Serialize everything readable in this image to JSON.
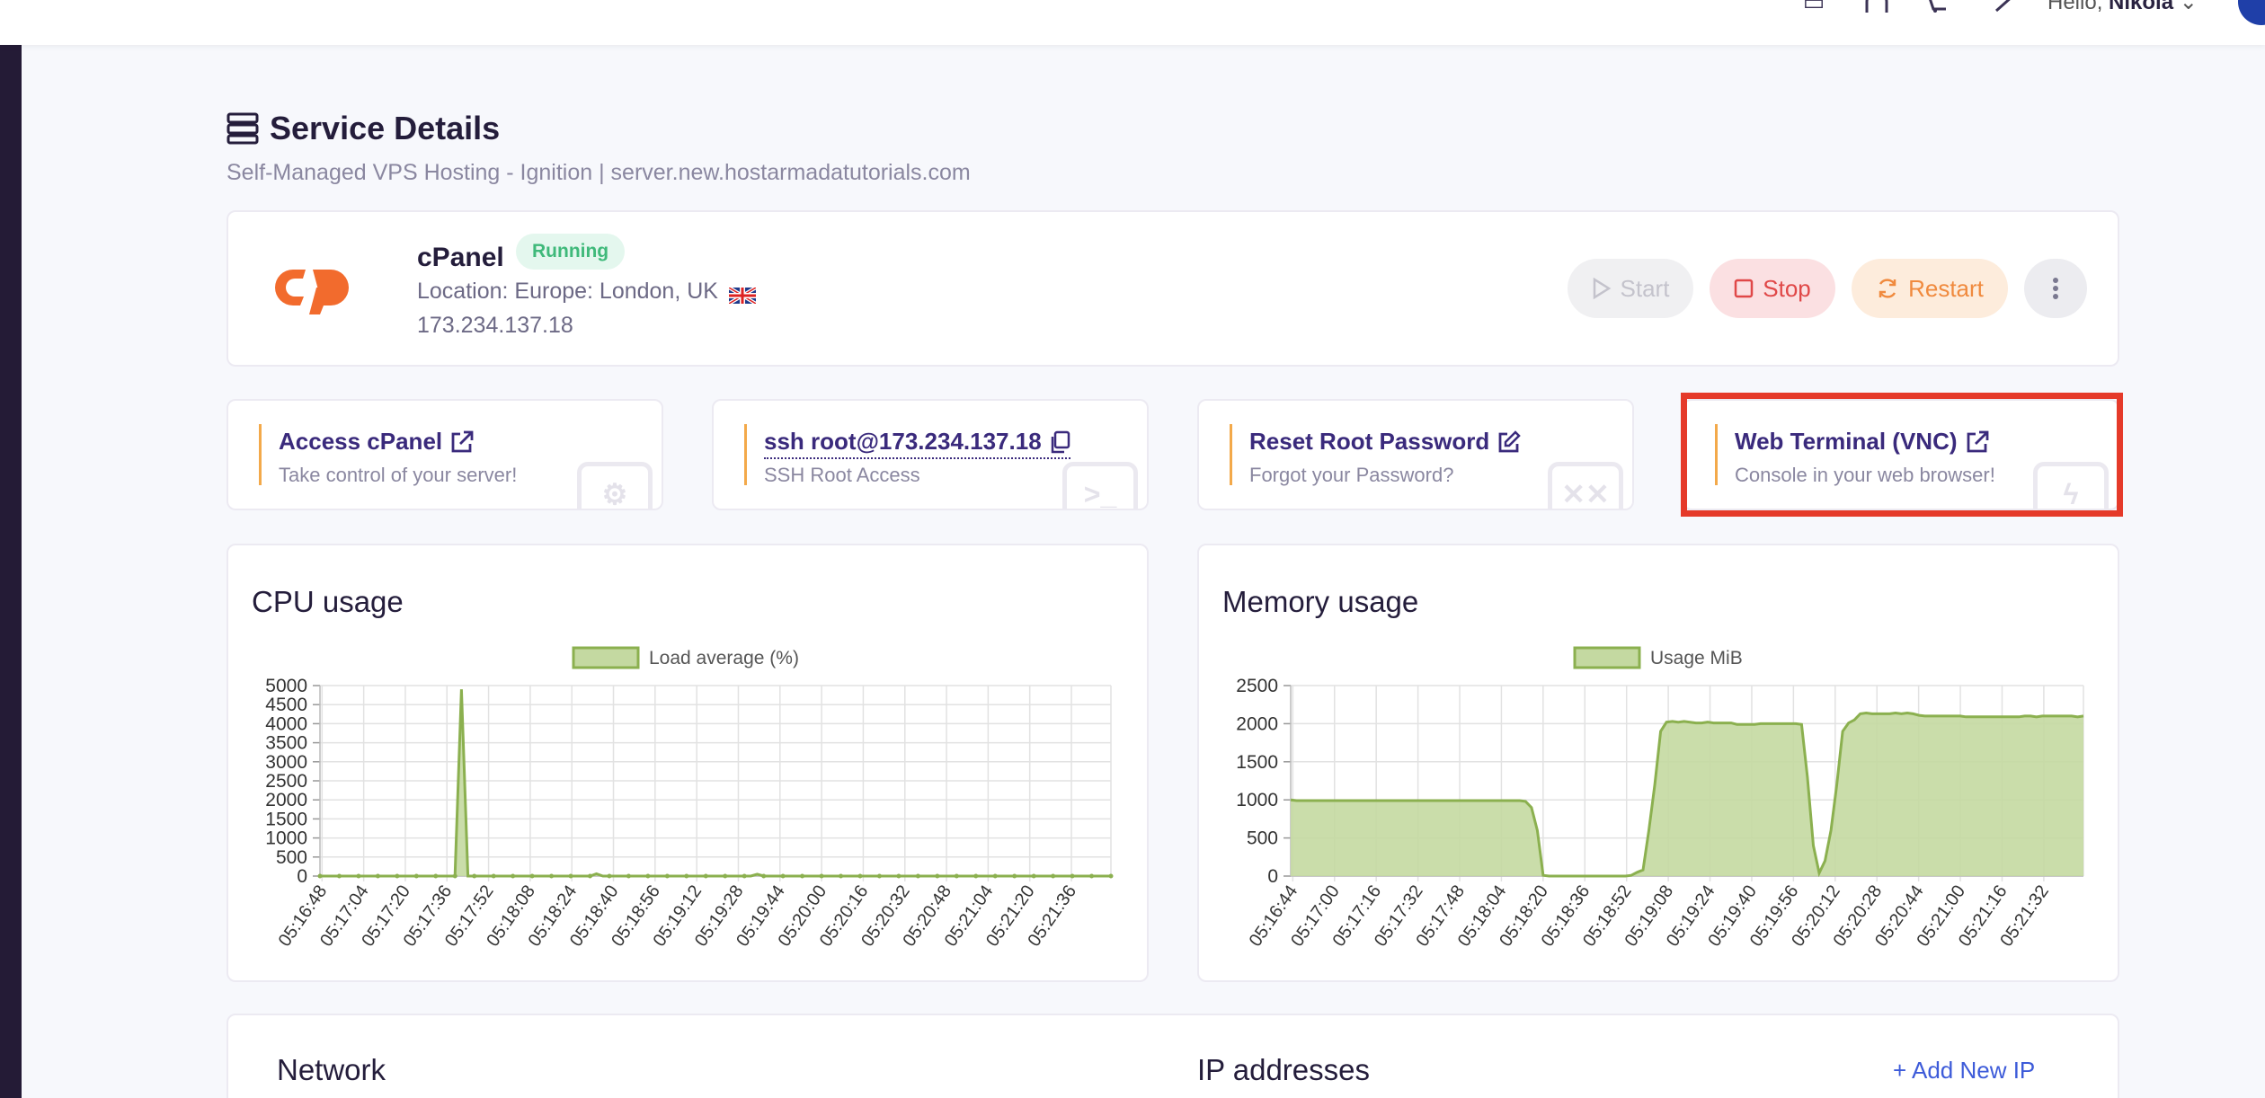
{
  "header": {
    "greeting": "Hello,",
    "user_name": "Nikola"
  },
  "page": {
    "title": "Service Details",
    "subtitle": "Self-Managed VPS Hosting - Ignition | server.new.hostarmadatutorials.com"
  },
  "service": {
    "name": "cPanel",
    "status": "Running",
    "location": "Location: Europe: London, UK",
    "ip": "173.234.137.18",
    "actions": {
      "start": "Start",
      "stop": "Stop",
      "restart": "Restart"
    }
  },
  "quick_links": [
    {
      "title": "Access cPanel",
      "subtitle": "Take control of your server!",
      "icon": "external-link-icon"
    },
    {
      "title": "ssh root@173.234.137.18",
      "subtitle": "SSH Root Access",
      "icon": "copy-icon"
    },
    {
      "title": "Reset Root Password",
      "subtitle": "Forgot your Password?",
      "icon": "edit-icon"
    },
    {
      "title": "Web Terminal (VNC)",
      "subtitle": "Console in your web browser!",
      "icon": "external-link-icon"
    }
  ],
  "colors": {
    "highlight": "#e53a2a",
    "series_fill": "#c4d9a1",
    "series_stroke": "#8bb04f",
    "link": "#3a2a7c"
  },
  "chart_data": [
    {
      "type": "area",
      "title": "CPU usage",
      "series": [
        {
          "name": "Load average (%)",
          "values": [
            0,
            0,
            0,
            0,
            0,
            0,
            0,
            0,
            0,
            0,
            0,
            0,
            0,
            0,
            0,
            0,
            0,
            0,
            0,
            0,
            0,
            0,
            4900,
            0,
            0,
            0,
            0,
            0,
            0,
            0,
            0,
            0,
            0,
            0,
            0,
            0,
            0,
            0,
            0,
            0,
            0,
            0,
            0,
            60,
            0,
            0,
            0,
            0,
            0,
            0,
            0,
            0,
            0,
            0,
            0,
            0,
            0,
            0,
            0,
            0,
            0,
            0,
            0,
            0,
            0,
            0,
            0,
            0,
            50,
            0,
            0,
            0,
            0,
            0,
            0,
            0,
            0,
            0,
            0,
            0,
            0,
            0,
            0,
            0,
            0,
            0,
            0,
            0,
            0,
            0,
            0,
            0,
            0,
            0,
            0,
            0,
            0,
            0,
            0,
            0,
            0,
            0,
            0,
            0,
            0,
            0,
            0,
            0,
            0,
            0,
            0,
            0,
            0,
            0,
            0,
            0,
            0,
            0,
            0,
            0,
            0,
            0,
            0,
            0
          ]
        }
      ],
      "x_labels": [
        "05:16:48",
        "05:17:04",
        "05:17:20",
        "05:17:36",
        "05:17:52",
        "05:18:08",
        "05:18:24",
        "05:18:40",
        "05:18:56",
        "05:19:12",
        "05:19:28",
        "05:19:44",
        "05:20:00",
        "05:20:16",
        "05:20:32",
        "05:20:48",
        "05:21:04",
        "05:21:20",
        "05:21:36"
      ],
      "y_ticks": [
        0,
        500,
        1000,
        1500,
        2000,
        2500,
        3000,
        3500,
        4000,
        4500,
        5000
      ],
      "ylim": [
        0,
        5000
      ],
      "grid": true,
      "legend": "top"
    },
    {
      "type": "area",
      "title": "Memory usage",
      "series": [
        {
          "name": "Usage MiB",
          "values": [
            1000,
            990,
            990,
            990,
            990,
            990,
            990,
            990,
            990,
            990,
            990,
            990,
            990,
            990,
            990,
            990,
            990,
            990,
            990,
            990,
            990,
            990,
            990,
            990,
            990,
            990,
            990,
            990,
            990,
            990,
            990,
            990,
            990,
            990,
            990,
            990,
            990,
            990,
            990,
            990,
            980,
            900,
            600,
            10,
            0,
            0,
            0,
            0,
            0,
            0,
            0,
            0,
            0,
            0,
            0,
            0,
            0,
            0,
            10,
            50,
            80,
            600,
            1200,
            1900,
            2020,
            2030,
            2020,
            2030,
            2020,
            2010,
            2010,
            2020,
            2010,
            2010,
            2010,
            2010,
            1990,
            1990,
            1990,
            1990,
            2000,
            2000,
            2000,
            2000,
            2000,
            2000,
            2000,
            1990,
            1300,
            400,
            40,
            200,
            600,
            1200,
            1900,
            2010,
            2050,
            2130,
            2140,
            2130,
            2130,
            2130,
            2130,
            2140,
            2130,
            2140,
            2130,
            2110,
            2100,
            2100,
            2100,
            2100,
            2100,
            2100,
            2100,
            2090,
            2090,
            2090,
            2090,
            2090,
            2090,
            2090,
            2090,
            2090,
            2090,
            2100,
            2100,
            2090,
            2100,
            2100,
            2100,
            2100,
            2100,
            2100,
            2090,
            2100
          ]
        }
      ],
      "x_labels": [
        "05:16:44",
        "05:17:00",
        "05:17:16",
        "05:17:32",
        "05:17:48",
        "05:18:04",
        "05:18:20",
        "05:18:36",
        "05:18:52",
        "05:19:08",
        "05:19:24",
        "05:19:40",
        "05:19:56",
        "05:20:12",
        "05:20:28",
        "05:20:44",
        "05:21:00",
        "05:21:16",
        "05:21:32"
      ],
      "y_ticks": [
        0,
        500,
        1000,
        1500,
        2000,
        2500
      ],
      "ylim": [
        0,
        2500
      ],
      "grid": true,
      "legend": "top"
    }
  ],
  "bottom": {
    "network_title": "Network",
    "ip_title": "IP addresses",
    "add_ip": "Add New IP"
  }
}
